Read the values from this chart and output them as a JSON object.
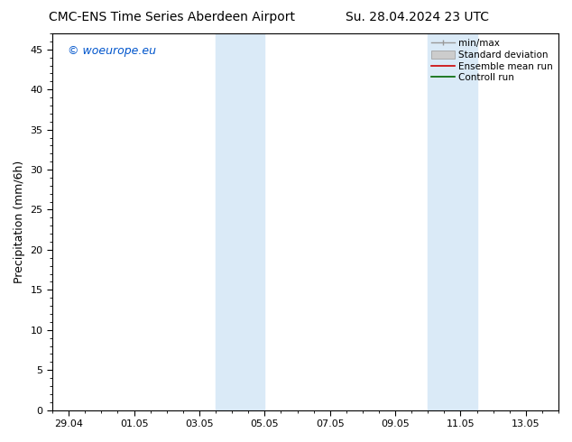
{
  "title_left": "CMC-ENS Time Series Aberdeen Airport",
  "title_right": "Su. 28.04.2024 23 UTC",
  "ylabel": "Precipitation (mm/6h)",
  "watermark": "© woeurope.eu",
  "watermark_color": "#0055cc",
  "bg_color": "#ffffff",
  "plot_bg_color": "#ffffff",
  "shaded_region_color": "#daeaf7",
  "x_ticks": [
    "29.04",
    "01.05",
    "03.05",
    "05.05",
    "07.05",
    "09.05",
    "11.05",
    "13.05"
  ],
  "x_tick_positions": [
    0,
    2,
    4,
    6,
    8,
    10,
    12,
    14
  ],
  "xlim": [
    -0.5,
    15.0
  ],
  "ylim": [
    0,
    47
  ],
  "y_ticks": [
    0,
    5,
    10,
    15,
    20,
    25,
    30,
    35,
    40,
    45
  ],
  "shaded_bands": [
    {
      "x_start": 4.5,
      "x_end": 6.0
    },
    {
      "x_start": 11.0,
      "x_end": 12.5
    }
  ],
  "title_fontsize": 10,
  "tick_fontsize": 8,
  "label_fontsize": 9
}
